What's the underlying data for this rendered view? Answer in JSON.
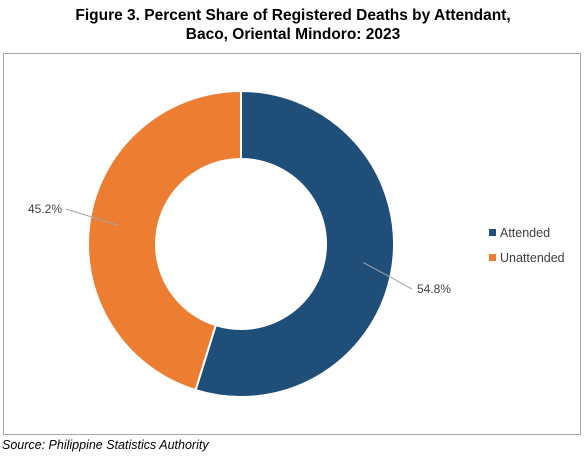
{
  "chart_data": {
    "type": "pie",
    "variant": "donut",
    "title_line1": "Figure 3. Percent Share of Registered Deaths by Attendant,",
    "title_line2": "Baco, Oriental Mindoro: 2023",
    "categories": [
      "Attended",
      "Unattended"
    ],
    "values": [
      54.8,
      45.2
    ],
    "data_labels": [
      "54.8%",
      "45.2%"
    ],
    "colors": [
      "#1f4e79",
      "#ed7d31"
    ],
    "legend_position": "right"
  },
  "source": "Source: Philippine Statistics Authority"
}
